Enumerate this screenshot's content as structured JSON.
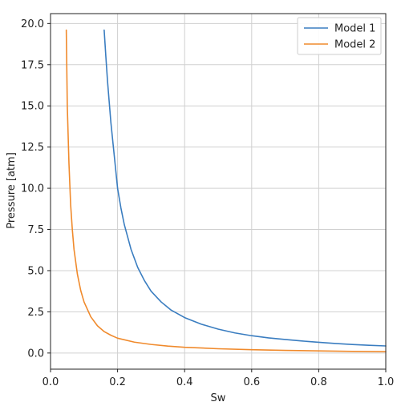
{
  "chart_data": {
    "type": "line",
    "xlabel": "Sw",
    "ylabel": "Pressure [atm]",
    "xlim": [
      0.0,
      1.0
    ],
    "ylim": [
      -0.98,
      20.6
    ],
    "xticks": [
      "0.0",
      "0.2",
      "0.4",
      "0.6",
      "0.8",
      "1.0"
    ],
    "yticks": [
      "0.0",
      "2.5",
      "5.0",
      "7.5",
      "10.0",
      "12.5",
      "15.0",
      "17.5",
      "20.0"
    ],
    "grid": true,
    "legend_position": "top-right",
    "series": [
      {
        "name": "Model 1",
        "color": "#3a7dc0",
        "points": [
          [
            0.16,
            19.6
          ],
          [
            0.165,
            18.0
          ],
          [
            0.17,
            16.5
          ],
          [
            0.18,
            14.0
          ],
          [
            0.19,
            12.0
          ],
          [
            0.2,
            10.0
          ],
          [
            0.21,
            8.8
          ],
          [
            0.22,
            7.8
          ],
          [
            0.24,
            6.3
          ],
          [
            0.26,
            5.2
          ],
          [
            0.28,
            4.4
          ],
          [
            0.3,
            3.75
          ],
          [
            0.33,
            3.1
          ],
          [
            0.36,
            2.6
          ],
          [
            0.4,
            2.15
          ],
          [
            0.45,
            1.75
          ],
          [
            0.5,
            1.45
          ],
          [
            0.55,
            1.22
          ],
          [
            0.6,
            1.05
          ],
          [
            0.65,
            0.92
          ],
          [
            0.7,
            0.82
          ],
          [
            0.75,
            0.73
          ],
          [
            0.8,
            0.65
          ],
          [
            0.85,
            0.58
          ],
          [
            0.9,
            0.52
          ],
          [
            0.95,
            0.47
          ],
          [
            1.0,
            0.43
          ]
        ]
      },
      {
        "name": "Model 2",
        "color": "#f08a2c",
        "points": [
          [
            0.047,
            19.6
          ],
          [
            0.05,
            15.0
          ],
          [
            0.055,
            11.5
          ],
          [
            0.06,
            9.0
          ],
          [
            0.065,
            7.5
          ],
          [
            0.07,
            6.3
          ],
          [
            0.08,
            4.8
          ],
          [
            0.09,
            3.8
          ],
          [
            0.1,
            3.1
          ],
          [
            0.12,
            2.2
          ],
          [
            0.14,
            1.65
          ],
          [
            0.16,
            1.3
          ],
          [
            0.18,
            1.08
          ],
          [
            0.2,
            0.9
          ],
          [
            0.25,
            0.66
          ],
          [
            0.3,
            0.52
          ],
          [
            0.35,
            0.42
          ],
          [
            0.4,
            0.35
          ],
          [
            0.5,
            0.26
          ],
          [
            0.6,
            0.2
          ],
          [
            0.7,
            0.16
          ],
          [
            0.8,
            0.13
          ],
          [
            0.9,
            0.1
          ],
          [
            1.0,
            0.08
          ]
        ]
      }
    ]
  }
}
